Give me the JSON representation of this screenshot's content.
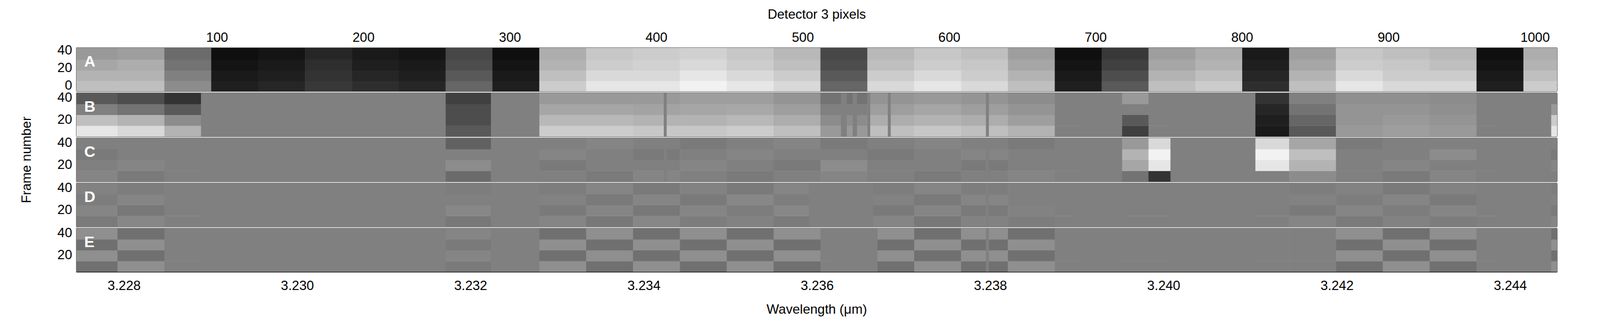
{
  "chart_data": {
    "type": "heatmap",
    "x_label_top": "Detector 3 pixels",
    "xlim_top": [
      4,
      1015
    ],
    "xticks_top": [
      100,
      200,
      300,
      400,
      500,
      600,
      700,
      800,
      900,
      1000
    ],
    "xlabel": "Wavelength (μm)",
    "xlim": [
      3.22745,
      3.24454
    ],
    "xticks": [
      3.228,
      {
        "value": 3.23,
        "label": "3.230"
      },
      3.232,
      3.234,
      3.236,
      3.238,
      {
        "value": 3.24,
        "label": "3.240"
      },
      3.242,
      3.244
    ],
    "ylabel": "Frame number",
    "value_range": [
      0,
      1
    ],
    "pixel_edges": [
      4,
      32,
      64,
      96,
      128,
      160,
      192,
      224,
      256,
      288,
      320,
      352,
      384,
      416,
      448,
      480,
      512,
      544,
      576,
      608,
      640,
      672,
      704,
      736,
      768,
      800,
      832,
      864,
      896,
      928,
      960,
      992,
      1015
    ],
    "panels": [
      {
        "label": "A",
        "ylim": [
          -7,
          42
        ],
        "yticks": [
          0,
          20,
          40
        ],
        "frame_edges": [
          -7,
          5,
          17,
          29,
          42
        ],
        "cells": [
          [
            0.75,
            0.75,
            0.55,
            0.12,
            0.15,
            0.22,
            0.18,
            0.15,
            0.4,
            0.12,
            0.8,
            0.9,
            0.9,
            0.95,
            0.9,
            0.85,
            0.4,
            0.85,
            0.9,
            0.85,
            0.75,
            0.12,
            0.35,
            0.75,
            0.8,
            0.18,
            0.75,
            0.9,
            0.85,
            0.85,
            0.12,
            0.8
          ],
          [
            0.7,
            0.7,
            0.5,
            0.1,
            0.12,
            0.2,
            0.15,
            0.12,
            0.35,
            0.1,
            0.75,
            0.85,
            0.85,
            0.9,
            0.85,
            0.8,
            0.35,
            0.8,
            0.85,
            0.8,
            0.7,
            0.1,
            0.3,
            0.7,
            0.75,
            0.15,
            0.7,
            0.85,
            0.8,
            0.8,
            0.1,
            0.75
          ],
          [
            0.65,
            0.68,
            0.45,
            0.08,
            0.1,
            0.18,
            0.12,
            0.1,
            0.3,
            0.08,
            0.7,
            0.8,
            0.82,
            0.85,
            0.8,
            0.75,
            0.3,
            0.75,
            0.8,
            0.78,
            0.65,
            0.08,
            0.25,
            0.65,
            0.7,
            0.12,
            0.65,
            0.8,
            0.78,
            0.75,
            0.08,
            0.7
          ],
          [
            0.6,
            0.62,
            0.42,
            0.06,
            0.08,
            0.15,
            0.1,
            0.08,
            0.28,
            0.06,
            0.68,
            0.78,
            0.8,
            0.82,
            0.78,
            0.72,
            0.28,
            0.72,
            0.78,
            0.75,
            0.62,
            0.06,
            0.22,
            0.62,
            0.68,
            0.1,
            0.62,
            0.78,
            0.75,
            0.72,
            0.06,
            0.68
          ]
        ],
        "masked_pixels": []
      },
      {
        "label": "B",
        "ylim": [
          4,
          44
        ],
        "yticks": [
          20,
          40
        ],
        "frame_edges": [
          4,
          14,
          24,
          34,
          44
        ],
        "cells": [
          [
            0.9,
            0.85,
            0.7,
            0.5,
            0.5,
            0.5,
            0.5,
            0.5,
            0.35,
            0.5,
            0.8,
            0.8,
            0.78,
            0.78,
            0.8,
            0.75,
            0.6,
            0.75,
            0.78,
            0.75,
            0.7,
            0.5,
            0.25,
            0.5,
            0.5,
            0.1,
            0.35,
            0.6,
            0.62,
            0.6,
            0.5,
            0.9
          ],
          [
            0.75,
            0.7,
            0.55,
            0.5,
            0.5,
            0.5,
            0.5,
            0.5,
            0.3,
            0.5,
            0.72,
            0.72,
            0.7,
            0.7,
            0.72,
            0.68,
            0.55,
            0.68,
            0.7,
            0.68,
            0.62,
            0.5,
            0.35,
            0.5,
            0.5,
            0.12,
            0.4,
            0.58,
            0.6,
            0.58,
            0.5,
            0.8
          ],
          [
            0.5,
            0.45,
            0.35,
            0.5,
            0.5,
            0.5,
            0.5,
            0.5,
            0.3,
            0.5,
            0.65,
            0.65,
            0.64,
            0.65,
            0.66,
            0.62,
            0.5,
            0.62,
            0.65,
            0.62,
            0.58,
            0.5,
            0.5,
            0.5,
            0.5,
            0.15,
            0.45,
            0.58,
            0.58,
            0.56,
            0.5,
            0.6
          ],
          [
            0.35,
            0.3,
            0.2,
            0.5,
            0.5,
            0.5,
            0.5,
            0.5,
            0.25,
            0.5,
            0.6,
            0.6,
            0.6,
            0.62,
            0.62,
            0.58,
            0.45,
            0.58,
            0.6,
            0.58,
            0.55,
            0.5,
            0.6,
            0.5,
            0.5,
            0.2,
            0.5,
            0.56,
            0.56,
            0.55,
            0.5,
            0.5
          ]
        ],
        "masked_pixels": [
          [
            89,
            256
          ],
          [
            287,
            320
          ],
          [
            405,
            407
          ],
          [
            526,
            530
          ],
          [
            534,
            537
          ],
          [
            544,
            546
          ],
          [
            558,
            560
          ],
          [
            625,
            627
          ],
          [
            688,
            718
          ],
          [
            751,
            809
          ],
          [
            973,
            1011
          ]
        ]
      },
      {
        "label": "C",
        "ylim": [
          4,
          44
        ],
        "yticks": [
          20,
          40
        ],
        "frame_edges": [
          4,
          14,
          24,
          34,
          44
        ],
        "cells": [
          [
            0.52,
            0.48,
            0.5,
            0.5,
            0.5,
            0.5,
            0.5,
            0.5,
            0.42,
            0.5,
            0.5,
            0.48,
            0.52,
            0.5,
            0.48,
            0.5,
            0.52,
            0.5,
            0.48,
            0.5,
            0.52,
            0.5,
            0.45,
            0.2,
            0.5,
            0.5,
            0.55,
            0.5,
            0.48,
            0.52,
            0.5,
            0.5
          ],
          [
            0.5,
            0.52,
            0.5,
            0.5,
            0.5,
            0.5,
            0.5,
            0.5,
            0.55,
            0.5,
            0.48,
            0.5,
            0.5,
            0.52,
            0.5,
            0.48,
            0.55,
            0.5,
            0.5,
            0.48,
            0.5,
            0.5,
            0.65,
            0.9,
            0.5,
            0.9,
            0.7,
            0.5,
            0.52,
            0.5,
            0.5,
            0.52
          ],
          [
            0.48,
            0.5,
            0.5,
            0.5,
            0.5,
            0.5,
            0.5,
            0.5,
            0.5,
            0.5,
            0.52,
            0.5,
            0.48,
            0.5,
            0.52,
            0.5,
            0.5,
            0.48,
            0.5,
            0.52,
            0.5,
            0.5,
            0.7,
            0.95,
            0.5,
            0.95,
            0.75,
            0.5,
            0.5,
            0.55,
            0.5,
            0.48
          ],
          [
            0.5,
            0.5,
            0.5,
            0.5,
            0.5,
            0.5,
            0.5,
            0.5,
            0.38,
            0.5,
            0.5,
            0.52,
            0.5,
            0.48,
            0.5,
            0.52,
            0.48,
            0.5,
            0.52,
            0.5,
            0.48,
            0.5,
            0.6,
            0.85,
            0.5,
            0.85,
            0.65,
            0.48,
            0.5,
            0.5,
            0.5,
            0.5
          ]
        ],
        "masked_pixels": [
          [
            89,
            256
          ],
          [
            287,
            320
          ],
          [
            405,
            407
          ],
          [
            625,
            627
          ],
          [
            688,
            718
          ],
          [
            751,
            809
          ],
          [
            973,
            1011
          ]
        ]
      },
      {
        "label": "D",
        "ylim": [
          4,
          44
        ],
        "yticks": [
          20,
          40
        ],
        "frame_edges": [
          4,
          14,
          24,
          34,
          44
        ],
        "cells": [
          [
            0.48,
            0.53,
            0.5,
            0.5,
            0.5,
            0.5,
            0.5,
            0.5,
            0.47,
            0.5,
            0.52,
            0.47,
            0.53,
            0.49,
            0.51,
            0.48,
            0.5,
            0.52,
            0.47,
            0.51,
            0.49,
            0.5,
            0.5,
            0.5,
            0.5,
            0.5,
            0.52,
            0.48,
            0.51,
            0.49,
            0.5,
            0.52
          ],
          [
            0.52,
            0.47,
            0.5,
            0.5,
            0.5,
            0.5,
            0.5,
            0.5,
            0.53,
            0.5,
            0.48,
            0.52,
            0.47,
            0.52,
            0.49,
            0.53,
            0.5,
            0.48,
            0.52,
            0.48,
            0.51,
            0.5,
            0.5,
            0.5,
            0.5,
            0.5,
            0.48,
            0.52,
            0.49,
            0.52,
            0.5,
            0.48
          ],
          [
            0.49,
            0.52,
            0.5,
            0.5,
            0.5,
            0.5,
            0.5,
            0.5,
            0.5,
            0.5,
            0.51,
            0.48,
            0.52,
            0.48,
            0.53,
            0.49,
            0.5,
            0.51,
            0.48,
            0.52,
            0.5,
            0.5,
            0.5,
            0.5,
            0.5,
            0.5,
            0.51,
            0.49,
            0.52,
            0.48,
            0.5,
            0.51
          ],
          [
            0.51,
            0.49,
            0.5,
            0.5,
            0.5,
            0.5,
            0.5,
            0.5,
            0.49,
            0.5,
            0.49,
            0.52,
            0.48,
            0.51,
            0.48,
            0.52,
            0.5,
            0.49,
            0.52,
            0.49,
            0.5,
            0.5,
            0.5,
            0.5,
            0.5,
            0.5,
            0.49,
            0.51,
            0.48,
            0.51,
            0.5,
            0.49
          ]
        ],
        "masked_pixels": [
          [
            89,
            256
          ],
          [
            287,
            320
          ],
          [
            504,
            548
          ],
          [
            625,
            627
          ],
          [
            688,
            718
          ],
          [
            751,
            809
          ],
          [
            973,
            1011
          ]
        ]
      },
      {
        "label": "E",
        "ylim": [
          4,
          44
        ],
        "yticks": [
          20,
          40
        ],
        "frame_edges": [
          4,
          14,
          24,
          34,
          44
        ],
        "cells": [
          [
            0.44,
            0.56,
            0.5,
            0.5,
            0.5,
            0.5,
            0.5,
            0.5,
            0.48,
            0.5,
            0.56,
            0.44,
            0.56,
            0.44,
            0.56,
            0.44,
            0.5,
            0.44,
            0.56,
            0.44,
            0.56,
            0.5,
            0.5,
            0.5,
            0.5,
            0.5,
            0.5,
            0.44,
            0.56,
            0.44,
            0.5,
            0.56
          ],
          [
            0.56,
            0.44,
            0.5,
            0.5,
            0.5,
            0.5,
            0.5,
            0.5,
            0.52,
            0.5,
            0.44,
            0.56,
            0.44,
            0.56,
            0.44,
            0.56,
            0.5,
            0.56,
            0.44,
            0.56,
            0.44,
            0.5,
            0.5,
            0.5,
            0.5,
            0.5,
            0.5,
            0.56,
            0.44,
            0.56,
            0.5,
            0.44
          ],
          [
            0.44,
            0.56,
            0.5,
            0.5,
            0.5,
            0.5,
            0.5,
            0.5,
            0.48,
            0.5,
            0.56,
            0.44,
            0.56,
            0.44,
            0.56,
            0.44,
            0.5,
            0.44,
            0.56,
            0.44,
            0.56,
            0.5,
            0.5,
            0.5,
            0.5,
            0.5,
            0.5,
            0.44,
            0.56,
            0.44,
            0.5,
            0.56
          ],
          [
            0.56,
            0.44,
            0.5,
            0.5,
            0.5,
            0.5,
            0.5,
            0.5,
            0.52,
            0.5,
            0.44,
            0.56,
            0.44,
            0.56,
            0.44,
            0.56,
            0.5,
            0.56,
            0.44,
            0.56,
            0.44,
            0.5,
            0.5,
            0.5,
            0.5,
            0.5,
            0.5,
            0.56,
            0.44,
            0.56,
            0.5,
            0.44
          ]
        ],
        "masked_pixels": [
          [
            89,
            256
          ],
          [
            287,
            320
          ],
          [
            522,
            551
          ],
          [
            625,
            627
          ],
          [
            688,
            718
          ],
          [
            751,
            809
          ],
          [
            973,
            1011
          ]
        ]
      }
    ]
  }
}
